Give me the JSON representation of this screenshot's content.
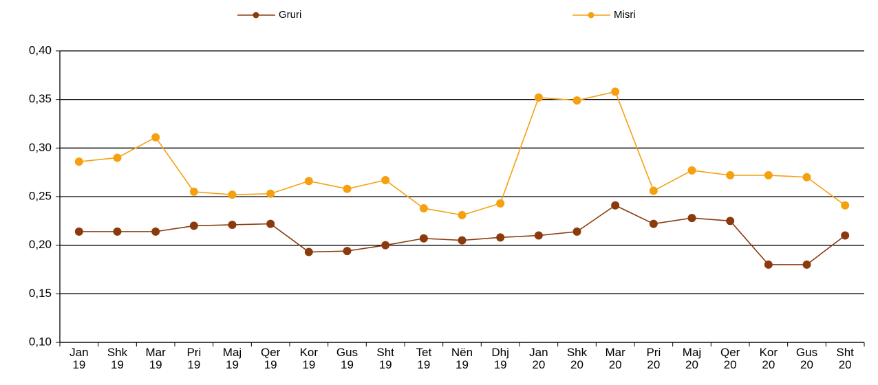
{
  "chart_data": {
    "type": "line",
    "categories": [
      "Jan 19",
      "Shk 19",
      "Mar 19",
      "Pri 19",
      "Maj 19",
      "Qer 19",
      "Kor 19",
      "Gus 19",
      "Sht 19",
      "Tet 19",
      "Nën 19",
      "Dhj 19",
      "Jan 20",
      "Shk 20",
      "Mar 20",
      "Pri 20",
      "Maj 20",
      "Qer 20",
      "Kor 20",
      "Gus 20",
      "Sht 20"
    ],
    "series": [
      {
        "name": "Gruri",
        "color": "#8b3a0e",
        "values": [
          0.214,
          0.214,
          0.214,
          0.22,
          0.221,
          0.222,
          0.193,
          0.194,
          0.2,
          0.207,
          0.205,
          0.208,
          0.21,
          0.214,
          0.241,
          0.222,
          0.228,
          0.225,
          0.18,
          0.18,
          0.21
        ]
      },
      {
        "name": "Misri",
        "color": "#f5a00f",
        "values": [
          0.286,
          0.29,
          0.311,
          0.255,
          0.252,
          0.253,
          0.266,
          0.258,
          0.267,
          0.238,
          0.231,
          0.243,
          0.352,
          0.349,
          0.358,
          0.256,
          0.277,
          0.272,
          0.272,
          0.27,
          0.241
        ]
      }
    ],
    "ylim": [
      0.1,
      0.4
    ],
    "yticks": [
      {
        "value": 0.1,
        "label": "0,10"
      },
      {
        "value": 0.15,
        "label": "0,15"
      },
      {
        "value": 0.2,
        "label": "0,20"
      },
      {
        "value": 0.25,
        "label": "0,25"
      },
      {
        "value": 0.3,
        "label": "0,30"
      },
      {
        "value": 0.35,
        "label": "0,35"
      },
      {
        "value": 0.4,
        "label": "0,40"
      }
    ],
    "grid": true,
    "legend": "top"
  }
}
